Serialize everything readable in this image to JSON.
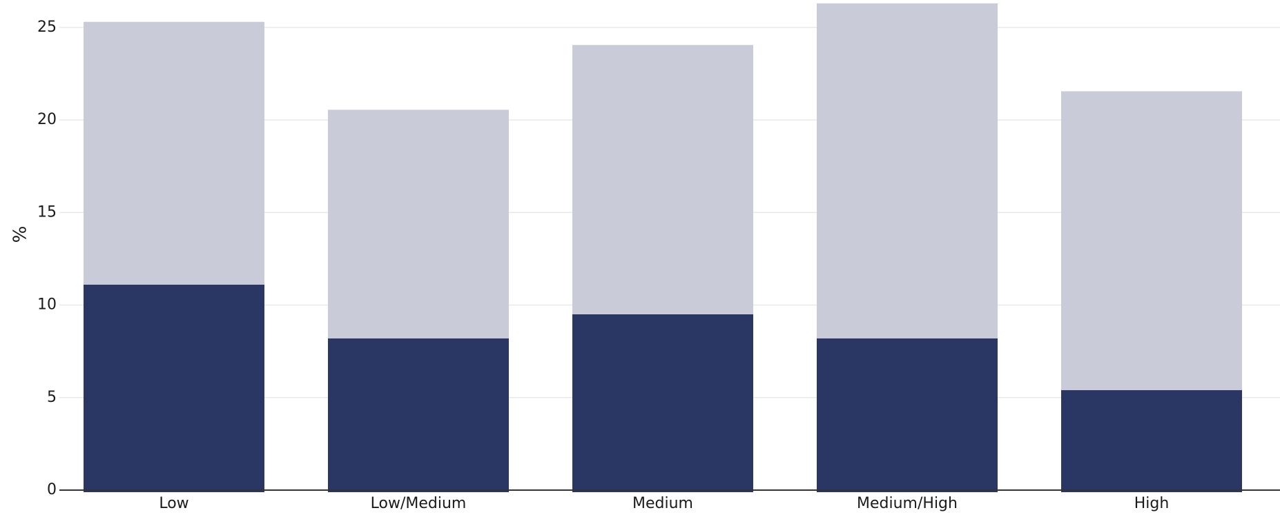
{
  "chart_data": {
    "type": "bar",
    "stacked": true,
    "categories": [
      "Low",
      "Low/Medium",
      "Medium",
      "Medium/High",
      "High"
    ],
    "series": [
      {
        "values": [
          11.1,
          8.2,
          9.5,
          8.2,
          5.4
        ],
        "color": "#2a3663"
      },
      {
        "values": [
          14.2,
          12.35,
          14.55,
          18.1,
          16.15
        ],
        "color": "#c9ccd8"
      }
    ],
    "totals": [
      25.3,
      20.55,
      24.05,
      26.3,
      21.55
    ],
    "title": "",
    "xlabel": "",
    "ylabel": "%",
    "ylim": [
      0,
      26.3
    ],
    "yticks": [
      0,
      5,
      10,
      15,
      20,
      25
    ],
    "grid": true,
    "legend": "none",
    "colors": {
      "grid": "#e4e4e4",
      "axis": "#333333",
      "text": "#1a1a1a"
    }
  }
}
